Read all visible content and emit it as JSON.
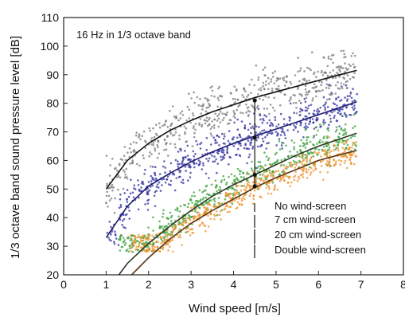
{
  "chart_data": {
    "type": "scatter",
    "annotation": "16 Hz in 1/3 octave band",
    "xlabel": "Wind speed [m/s]",
    "ylabel": "1/3 octave band sound pressure level [dB]",
    "xlim": [
      0,
      8
    ],
    "ylim": [
      20,
      110
    ],
    "x_ticks": [
      0,
      1,
      2,
      3,
      4,
      5,
      6,
      7,
      8
    ],
    "y_ticks": [
      20,
      30,
      40,
      50,
      60,
      70,
      80,
      90,
      100,
      110
    ],
    "grid": false,
    "legend_position": "bottom-right",
    "marker_x": 4.5,
    "marker_y_values": [
      81,
      68,
      55,
      51
    ],
    "series": [
      {
        "name": "No wind-screen",
        "color": "#7a7a7a",
        "line_color": "#111111",
        "x": [
          1,
          1.5,
          2,
          2.5,
          3,
          3.5,
          4,
          4.5,
          5,
          5.5,
          6,
          6.5,
          6.9
        ],
        "y": [
          50,
          60,
          66,
          70.5,
          74,
          77,
          79.5,
          82,
          84,
          86,
          88,
          90,
          91.5
        ]
      },
      {
        "name": "7 cm wind-screen",
        "color": "#2f2fa0",
        "line_color": "#1c1c6e",
        "x": [
          1,
          1.5,
          2,
          2.5,
          3,
          3.5,
          4,
          4.5,
          5,
          5.5,
          6,
          6.5,
          6.9
        ],
        "y": [
          33,
          44,
          51,
          55.5,
          59.5,
          63,
          66,
          68.5,
          71,
          73.5,
          76,
          78.5,
          80.5
        ]
      },
      {
        "name": "20 cm wind-screen",
        "color": "#3aa03a",
        "line_color": "#2a3a2a",
        "x": [
          1.3,
          1.5,
          2,
          2.5,
          3,
          3.5,
          4,
          4.5,
          5,
          5.5,
          6,
          6.5,
          6.9
        ],
        "y": [
          20,
          24,
          31,
          37,
          42.5,
          47.5,
          51.5,
          55,
          58.5,
          62,
          65,
          67.5,
          69.5
        ]
      },
      {
        "name": "Double wind-screen",
        "color": "#f0902a",
        "line_color": "#5a3a1a",
        "x": [
          1.6,
          2,
          2.5,
          3,
          3.5,
          4,
          4.5,
          5,
          5.5,
          6,
          6.5,
          6.9
        ],
        "y": [
          20,
          26,
          32.5,
          38,
          42.5,
          46.5,
          50.5,
          54,
          57,
          60,
          62,
          63.5
        ]
      }
    ]
  }
}
